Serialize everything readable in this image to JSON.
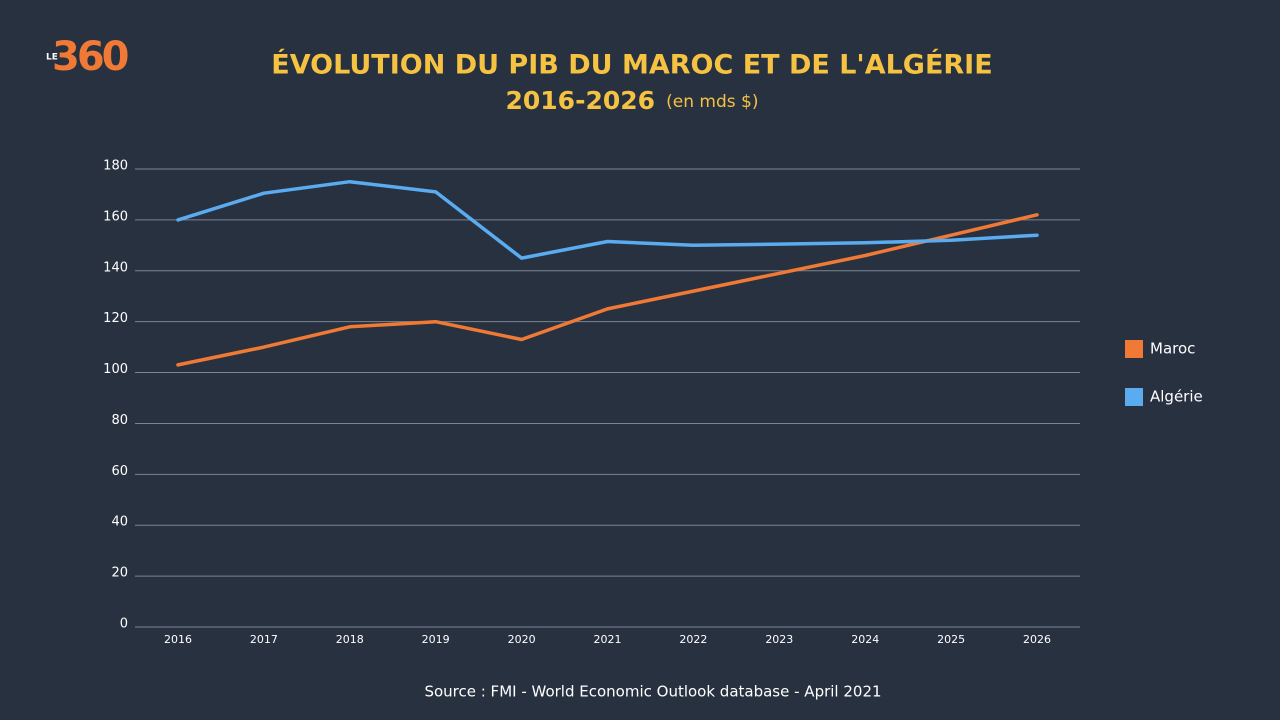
{
  "logo": {
    "prefix": "LE",
    "number": "360"
  },
  "chart_data": {
    "type": "line",
    "title": "ÉVOLUTION DU PIB DU MAROC ET DE L'ALGÉRIE",
    "subtitle": "2016-2026",
    "unit_note": "(en mds $)",
    "categories": [
      "2016",
      "2017",
      "2018",
      "2019",
      "2020",
      "2021",
      "2022",
      "2023",
      "2024",
      "2025",
      "2026"
    ],
    "series": [
      {
        "name": "Maroc",
        "color": "#f07a35",
        "values": [
          103,
          110,
          118,
          120,
          113,
          125,
          132,
          139,
          146,
          154,
          162
        ]
      },
      {
        "name": "Algérie",
        "color": "#5aabf0",
        "values": [
          160,
          170.5,
          175,
          171,
          145,
          151.5,
          150,
          150.5,
          151,
          152,
          154
        ]
      }
    ],
    "ylim": [
      0,
      180
    ],
    "yticks": [
      0,
      20,
      40,
      60,
      80,
      100,
      120,
      140,
      160,
      180
    ],
    "grid": true,
    "legend": "right",
    "source": "Source : FMI - World Economic Outlook database - April 2021"
  }
}
